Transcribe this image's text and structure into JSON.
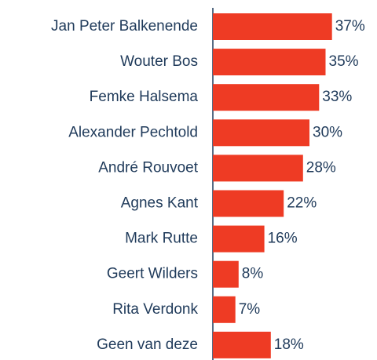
{
  "chart_data": {
    "type": "bar",
    "orientation": "horizontal",
    "categories": [
      "Jan Peter Balkenende",
      "Wouter Bos",
      "Femke Halsema",
      "Alexander Pechtold",
      "André Rouvoet",
      "Agnes Kant",
      "Mark Rutte",
      "Geert Wilders",
      "Rita Verdonk",
      "Geen van deze"
    ],
    "values": [
      37,
      35,
      33,
      30,
      28,
      22,
      16,
      8,
      7,
      18
    ],
    "value_labels": [
      "37%",
      "35%",
      "33%",
      "30%",
      "28%",
      "22%",
      "16%",
      "8%",
      "7%",
      "18%"
    ],
    "color": "#ee3b24"
  }
}
